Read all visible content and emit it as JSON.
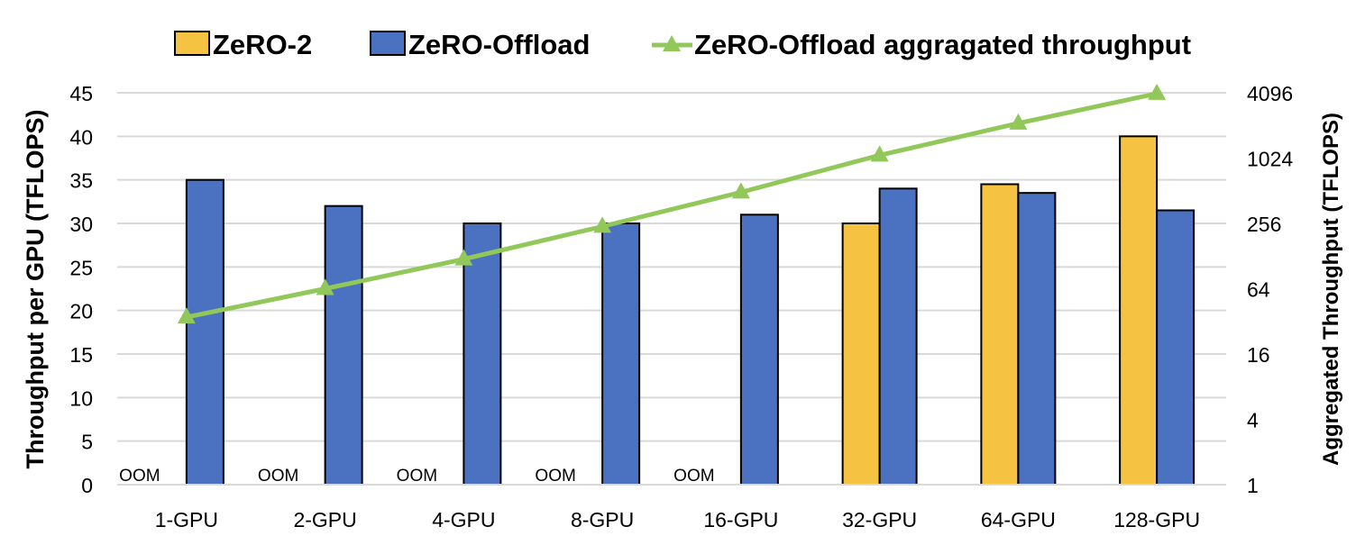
{
  "chart_data": {
    "type": "bar",
    "categories": [
      "1-GPU",
      "2-GPU",
      "4-GPU",
      "8-GPU",
      "16-GPU",
      "32-GPU",
      "64-GPU",
      "128-GPU"
    ],
    "series": [
      {
        "name": "ZeRO-2",
        "type": "bar",
        "axis": "left",
        "color": "#F5C242",
        "values": [
          null,
          null,
          null,
          null,
          null,
          30,
          34.5,
          40
        ]
      },
      {
        "name": "ZeRO-Offload",
        "type": "bar",
        "axis": "left",
        "color": "#4A72C0",
        "values": [
          35,
          32,
          30,
          30,
          31,
          34,
          33.5,
          31.5
        ]
      },
      {
        "name": "ZeRO-Offload aggragated throughput",
        "type": "line",
        "axis": "right",
        "color": "#92C85A",
        "marker": "triangle",
        "values": [
          35,
          64,
          120,
          240,
          496,
          1088,
          2144,
          4032
        ]
      }
    ],
    "annotations": [
      "OOM",
      "OOM",
      "OOM",
      "OOM",
      "OOM"
    ],
    "ylabel": "Throughput per GPU (TFLOPS)",
    "ylabel_right": "Aggregated Throughput (TFLOPS)",
    "ylim": [
      0,
      45
    ],
    "yticks": [
      "0",
      "5",
      "10",
      "15",
      "20",
      "25",
      "30",
      "35",
      "40",
      "45"
    ],
    "ylim_right": [
      1,
      4096
    ],
    "yscale_right": "log2",
    "yticks_right": [
      "1",
      "4",
      "16",
      "64",
      "256",
      "1024",
      "4096"
    ],
    "grid": true,
    "legend": "top"
  }
}
